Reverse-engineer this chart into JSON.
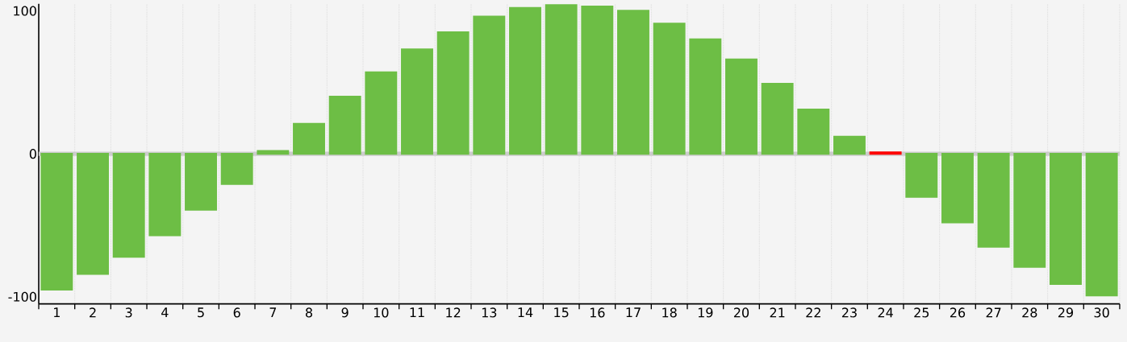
{
  "chart_data": {
    "type": "bar",
    "categories": [
      "1",
      "2",
      "3",
      "4",
      "5",
      "6",
      "7",
      "8",
      "9",
      "10",
      "11",
      "12",
      "13",
      "14",
      "15",
      "16",
      "17",
      "18",
      "19",
      "20",
      "21",
      "22",
      "23",
      "24",
      "25",
      "26",
      "27",
      "28",
      "29",
      "30"
    ],
    "values": [
      -95,
      -84,
      -72,
      -57,
      -39,
      -21,
      2,
      21,
      40,
      57,
      73,
      85,
      96,
      102,
      104,
      103,
      100,
      91,
      80,
      66,
      49,
      31,
      12,
      1,
      -30,
      -48,
      -65,
      -79,
      -91,
      -99
    ],
    "colors": [
      "#6dbe45",
      "#6dbe45",
      "#6dbe45",
      "#6dbe45",
      "#6dbe45",
      "#6dbe45",
      "#6dbe45",
      "#6dbe45",
      "#6dbe45",
      "#6dbe45",
      "#6dbe45",
      "#6dbe45",
      "#6dbe45",
      "#6dbe45",
      "#6dbe45",
      "#6dbe45",
      "#6dbe45",
      "#6dbe45",
      "#6dbe45",
      "#6dbe45",
      "#6dbe45",
      "#6dbe45",
      "#6dbe45",
      "#ff0000",
      "#6dbe45",
      "#6dbe45",
      "#6dbe45",
      "#6dbe45",
      "#6dbe45",
      "#6dbe45"
    ],
    "ylim": [
      -105,
      105
    ],
    "yticks": [
      -100,
      0,
      100
    ],
    "grid": "x",
    "ref_lines": [
      {
        "axis": "y",
        "value": 0,
        "color": "#cccccc"
      }
    ]
  }
}
